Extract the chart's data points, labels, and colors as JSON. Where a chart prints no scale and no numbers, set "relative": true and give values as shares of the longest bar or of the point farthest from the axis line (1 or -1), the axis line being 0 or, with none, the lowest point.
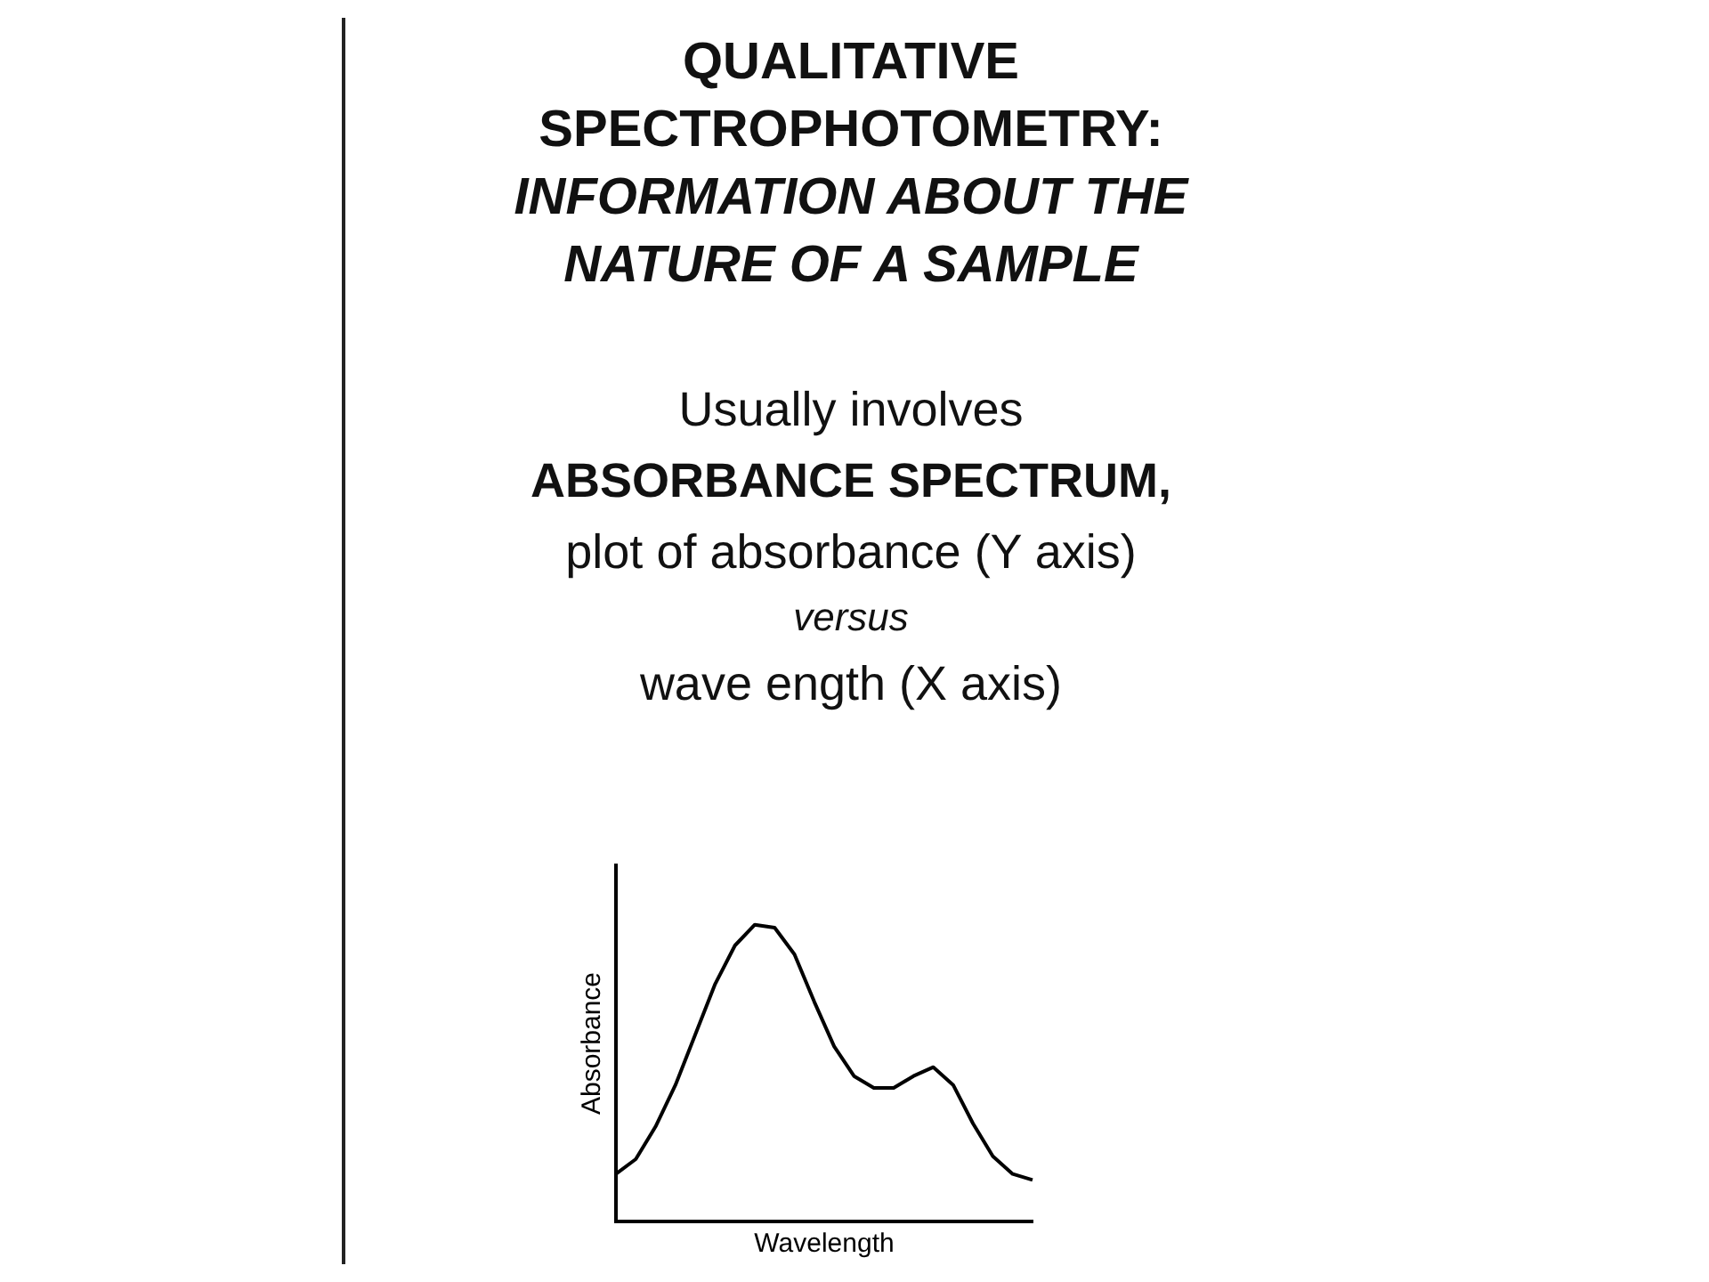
{
  "chart_data": {
    "type": "line",
    "title": "QUALITATIVE SPECTROPHOTOMETRY:",
    "subtitle": "INFORMATION ABOUT THE NATURE OF A SAMPLE",
    "annotations": [
      "Usually involves",
      "ABSORBANCE SPECTRUM,",
      "plot of absorbance (Y axis)",
      "versus",
      "wave ength (X axis)"
    ],
    "xlabel": "Wavelength",
    "ylabel": "Absorbance",
    "relative": true,
    "categories": [
      null,
      null,
      null,
      null,
      null,
      null,
      null,
      null,
      null,
      null,
      null,
      null,
      null,
      null,
      null,
      null,
      null,
      null,
      null,
      null,
      null,
      null
    ],
    "series": [
      {
        "color": "#000000",
        "values": [
          0.16,
          0.21,
          0.32,
          0.46,
          0.63,
          0.8,
          0.93,
          1,
          0.99,
          0.9,
          0.74,
          0.59,
          0.49,
          0.45,
          0.45,
          0.49,
          0.52,
          0.46,
          0.33,
          0.22,
          0.16,
          0.14
        ]
      }
    ],
    "grid": false,
    "legend": false,
    "marker": "none",
    "line_style": "solid"
  }
}
